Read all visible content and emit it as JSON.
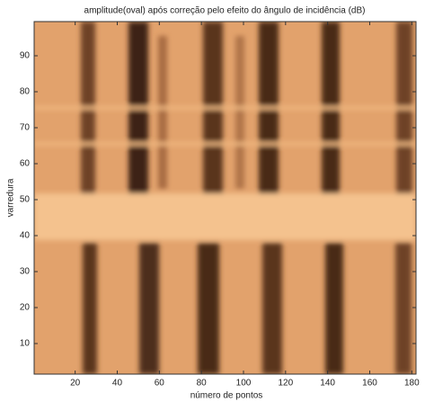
{
  "chart_data": {
    "type": "heatmap",
    "title": "amplitude(oval) após correção pelo efeito do ângulo de incidência (dB)",
    "xlabel": "número de pontos",
    "ylabel": "varredura",
    "xlim": [
      0.5,
      182
    ],
    "ylim": [
      1.5,
      99.5
    ],
    "xticks": [
      20,
      40,
      60,
      80,
      100,
      120,
      140,
      160,
      180
    ],
    "yticks": [
      10,
      20,
      30,
      40,
      50,
      60,
      70,
      80,
      90
    ]
  }
}
